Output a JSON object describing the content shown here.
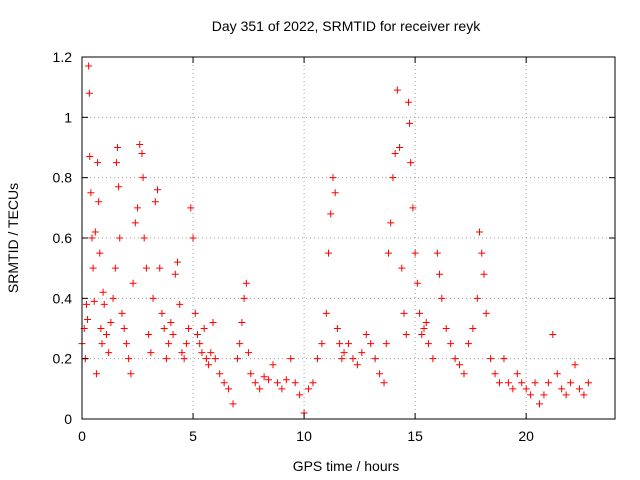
{
  "chart_data": {
    "type": "scatter",
    "title": "Day 351 of 2022, SRMTID for receiver reyk",
    "xlabel": "GPS time / hours",
    "ylabel": "SRMTID / TECUs",
    "xlim": [
      0,
      24
    ],
    "ylim": [
      0,
      1.2
    ],
    "x_ticks": [
      0,
      5,
      10,
      15,
      20
    ],
    "x_tick_labels": [
      "0",
      "5",
      "10",
      "15",
      "20"
    ],
    "y_ticks": [
      0,
      0.2,
      0.4,
      0.6,
      0.8,
      1.0,
      1.2
    ],
    "y_tick_labels": [
      "0",
      "0.2",
      "0.4",
      "0.6",
      "0.8",
      "1",
      "1.2"
    ],
    "grid": true,
    "marker": "plus",
    "colors": {
      "series": "#ff0000",
      "axes": "#000000",
      "grid": "#a0a0a0"
    },
    "series": [
      {
        "name": "SRMTID",
        "points": [
          [
            0.0,
            0.25
          ],
          [
            0.1,
            0.3
          ],
          [
            0.15,
            0.2
          ],
          [
            0.2,
            0.38
          ],
          [
            0.25,
            0.33
          ],
          [
            0.3,
            1.17
          ],
          [
            0.33,
            1.08
          ],
          [
            0.35,
            0.87
          ],
          [
            0.4,
            0.75
          ],
          [
            0.45,
            0.6
          ],
          [
            0.5,
            0.5
          ],
          [
            0.55,
            0.39
          ],
          [
            0.6,
            0.62
          ],
          [
            0.65,
            0.15
          ],
          [
            0.7,
            0.85
          ],
          [
            0.75,
            0.72
          ],
          [
            0.8,
            0.55
          ],
          [
            0.85,
            0.3
          ],
          [
            0.9,
            0.25
          ],
          [
            0.95,
            0.42
          ],
          [
            1.0,
            0.38
          ],
          [
            1.1,
            0.28
          ],
          [
            1.2,
            0.22
          ],
          [
            1.3,
            0.32
          ],
          [
            1.4,
            0.4
          ],
          [
            1.5,
            0.5
          ],
          [
            1.55,
            0.85
          ],
          [
            1.6,
            0.9
          ],
          [
            1.65,
            0.77
          ],
          [
            1.7,
            0.6
          ],
          [
            1.8,
            0.35
          ],
          [
            1.9,
            0.3
          ],
          [
            2.0,
            0.25
          ],
          [
            2.1,
            0.2
          ],
          [
            2.2,
            0.15
          ],
          [
            2.3,
            0.45
          ],
          [
            2.4,
            0.65
          ],
          [
            2.5,
            0.7
          ],
          [
            2.6,
            0.91
          ],
          [
            2.7,
            0.88
          ],
          [
            2.75,
            0.8
          ],
          [
            2.8,
            0.6
          ],
          [
            2.9,
            0.5
          ],
          [
            3.0,
            0.28
          ],
          [
            3.1,
            0.22
          ],
          [
            3.2,
            0.4
          ],
          [
            3.3,
            0.72
          ],
          [
            3.4,
            0.76
          ],
          [
            3.5,
            0.5
          ],
          [
            3.6,
            0.35
          ],
          [
            3.7,
            0.3
          ],
          [
            3.8,
            0.2
          ],
          [
            3.9,
            0.25
          ],
          [
            4.0,
            0.32
          ],
          [
            4.1,
            0.28
          ],
          [
            4.2,
            0.48
          ],
          [
            4.3,
            0.52
          ],
          [
            4.4,
            0.38
          ],
          [
            4.5,
            0.22
          ],
          [
            4.6,
            0.2
          ],
          [
            4.7,
            0.25
          ],
          [
            4.8,
            0.3
          ],
          [
            4.9,
            0.7
          ],
          [
            5.0,
            0.6
          ],
          [
            5.1,
            0.35
          ],
          [
            5.2,
            0.28
          ],
          [
            5.3,
            0.25
          ],
          [
            5.4,
            0.22
          ],
          [
            5.5,
            0.3
          ],
          [
            5.6,
            0.2
          ],
          [
            5.7,
            0.18
          ],
          [
            5.8,
            0.22
          ],
          [
            5.9,
            0.32
          ],
          [
            6.0,
            0.2
          ],
          [
            6.2,
            0.15
          ],
          [
            6.4,
            0.12
          ],
          [
            6.6,
            0.1
          ],
          [
            6.8,
            0.05
          ],
          [
            7.0,
            0.2
          ],
          [
            7.1,
            0.25
          ],
          [
            7.2,
            0.32
          ],
          [
            7.3,
            0.4
          ],
          [
            7.4,
            0.45
          ],
          [
            7.5,
            0.22
          ],
          [
            7.6,
            0.15
          ],
          [
            7.8,
            0.12
          ],
          [
            8.0,
            0.1
          ],
          [
            8.2,
            0.14
          ],
          [
            8.4,
            0.13
          ],
          [
            8.6,
            0.18
          ],
          [
            8.8,
            0.12
          ],
          [
            9.0,
            0.1
          ],
          [
            9.2,
            0.13
          ],
          [
            9.4,
            0.2
          ],
          [
            9.6,
            0.12
          ],
          [
            9.8,
            0.08
          ],
          [
            10.0,
            0.02
          ],
          [
            10.2,
            0.1
          ],
          [
            10.4,
            0.12
          ],
          [
            10.6,
            0.2
          ],
          [
            10.8,
            0.25
          ],
          [
            11.0,
            0.35
          ],
          [
            11.1,
            0.55
          ],
          [
            11.2,
            0.68
          ],
          [
            11.3,
            0.8
          ],
          [
            11.4,
            0.75
          ],
          [
            11.5,
            0.3
          ],
          [
            11.6,
            0.25
          ],
          [
            11.7,
            0.2
          ],
          [
            11.8,
            0.22
          ],
          [
            12.0,
            0.25
          ],
          [
            12.2,
            0.2
          ],
          [
            12.4,
            0.18
          ],
          [
            12.6,
            0.22
          ],
          [
            12.8,
            0.28
          ],
          [
            13.0,
            0.25
          ],
          [
            13.2,
            0.2
          ],
          [
            13.4,
            0.15
          ],
          [
            13.6,
            0.12
          ],
          [
            13.7,
            0.25
          ],
          [
            13.8,
            0.55
          ],
          [
            13.9,
            0.65
          ],
          [
            14.0,
            0.8
          ],
          [
            14.1,
            0.88
          ],
          [
            14.2,
            1.09
          ],
          [
            14.3,
            0.9
          ],
          [
            14.4,
            0.5
          ],
          [
            14.5,
            0.35
          ],
          [
            14.6,
            0.28
          ],
          [
            14.7,
            1.05
          ],
          [
            14.75,
            0.98
          ],
          [
            14.8,
            0.85
          ],
          [
            14.9,
            0.7
          ],
          [
            15.0,
            0.55
          ],
          [
            15.1,
            0.45
          ],
          [
            15.2,
            0.35
          ],
          [
            15.3,
            0.28
          ],
          [
            15.4,
            0.3
          ],
          [
            15.5,
            0.32
          ],
          [
            15.6,
            0.25
          ],
          [
            15.8,
            0.2
          ],
          [
            16.0,
            0.55
          ],
          [
            16.1,
            0.48
          ],
          [
            16.2,
            0.4
          ],
          [
            16.4,
            0.3
          ],
          [
            16.6,
            0.25
          ],
          [
            16.8,
            0.2
          ],
          [
            17.0,
            0.18
          ],
          [
            17.2,
            0.15
          ],
          [
            17.4,
            0.25
          ],
          [
            17.6,
            0.3
          ],
          [
            17.8,
            0.4
          ],
          [
            17.9,
            0.62
          ],
          [
            18.0,
            0.55
          ],
          [
            18.1,
            0.48
          ],
          [
            18.2,
            0.35
          ],
          [
            18.4,
            0.2
          ],
          [
            18.6,
            0.15
          ],
          [
            18.8,
            0.12
          ],
          [
            19.0,
            0.2
          ],
          [
            19.2,
            0.12
          ],
          [
            19.4,
            0.1
          ],
          [
            19.6,
            0.15
          ],
          [
            19.8,
            0.12
          ],
          [
            20.0,
            0.1
          ],
          [
            20.2,
            0.08
          ],
          [
            20.4,
            0.12
          ],
          [
            20.6,
            0.05
          ],
          [
            20.8,
            0.08
          ],
          [
            21.0,
            0.12
          ],
          [
            21.2,
            0.28
          ],
          [
            21.4,
            0.15
          ],
          [
            21.6,
            0.1
          ],
          [
            21.8,
            0.08
          ],
          [
            22.0,
            0.12
          ],
          [
            22.2,
            0.18
          ],
          [
            22.4,
            0.1
          ],
          [
            22.6,
            0.08
          ],
          [
            22.8,
            0.12
          ]
        ]
      }
    ]
  }
}
